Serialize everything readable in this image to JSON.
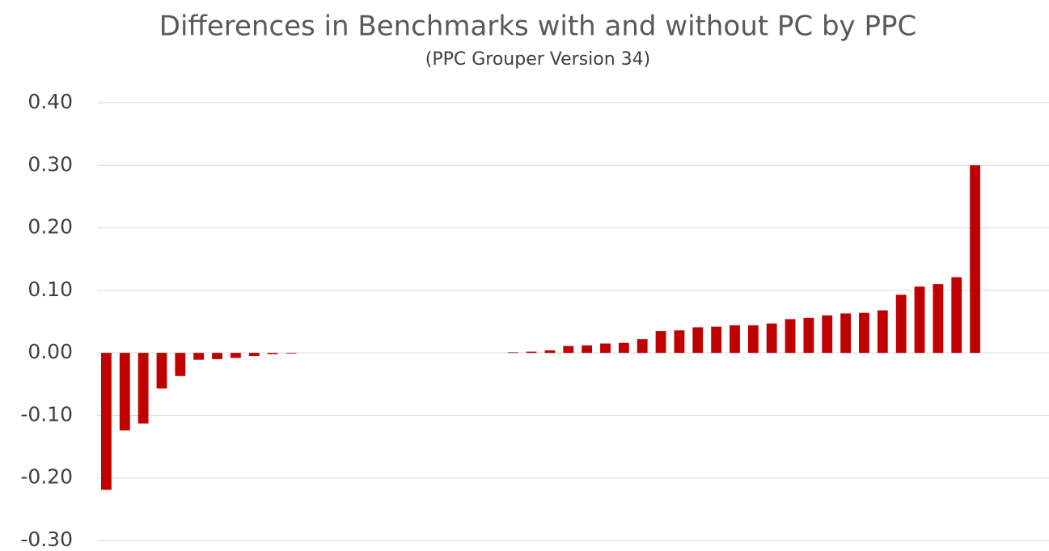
{
  "chart_data": {
    "type": "bar",
    "title": "Differences in Benchmarks with and without PC by PPC",
    "subtitle": "(PPC Grouper Version 34)",
    "categories": [
      null,
      null,
      null,
      null,
      null,
      null,
      null,
      null,
      null,
      null,
      null,
      null,
      null,
      null,
      null,
      null,
      null,
      null,
      null,
      null,
      null,
      null,
      null,
      null,
      null,
      null,
      null,
      null,
      null,
      null,
      null,
      null,
      null,
      null,
      null,
      null,
      null,
      null,
      null,
      null,
      null,
      null,
      null,
      null,
      null,
      null,
      null,
      null
    ],
    "values": [
      -0.219,
      -0.124,
      -0.113,
      -0.057,
      -0.037,
      -0.011,
      -0.01,
      -0.008,
      -0.005,
      -0.002,
      -0.001,
      0,
      0,
      0,
      0,
      0,
      0,
      0,
      0,
      0,
      0,
      0,
      0.001,
      0.002,
      0.004,
      0.011,
      0.012,
      0.015,
      0.016,
      0.022,
      0.035,
      0.036,
      0.041,
      0.042,
      0.044,
      0.044,
      0.047,
      0.054,
      0.056,
      0.06,
      0.063,
      0.064,
      0.068,
      0.093,
      0.106,
      0.11,
      0.121,
      0.3
    ],
    "color": "#c00000",
    "ylim": [
      -0.3,
      0.4
    ],
    "yticks": [
      {
        "value": -0.3,
        "label": "-0.30"
      },
      {
        "value": -0.2,
        "label": "-0.20"
      },
      {
        "value": -0.1,
        "label": "-0.10"
      },
      {
        "value": 0,
        "label": "0.00"
      },
      {
        "value": 0.1,
        "label": "0.10"
      },
      {
        "value": 0.2,
        "label": "0.20"
      },
      {
        "value": 0.3,
        "label": "0.30"
      },
      {
        "value": 0.4,
        "label": "0.40"
      }
    ],
    "grid": true
  }
}
